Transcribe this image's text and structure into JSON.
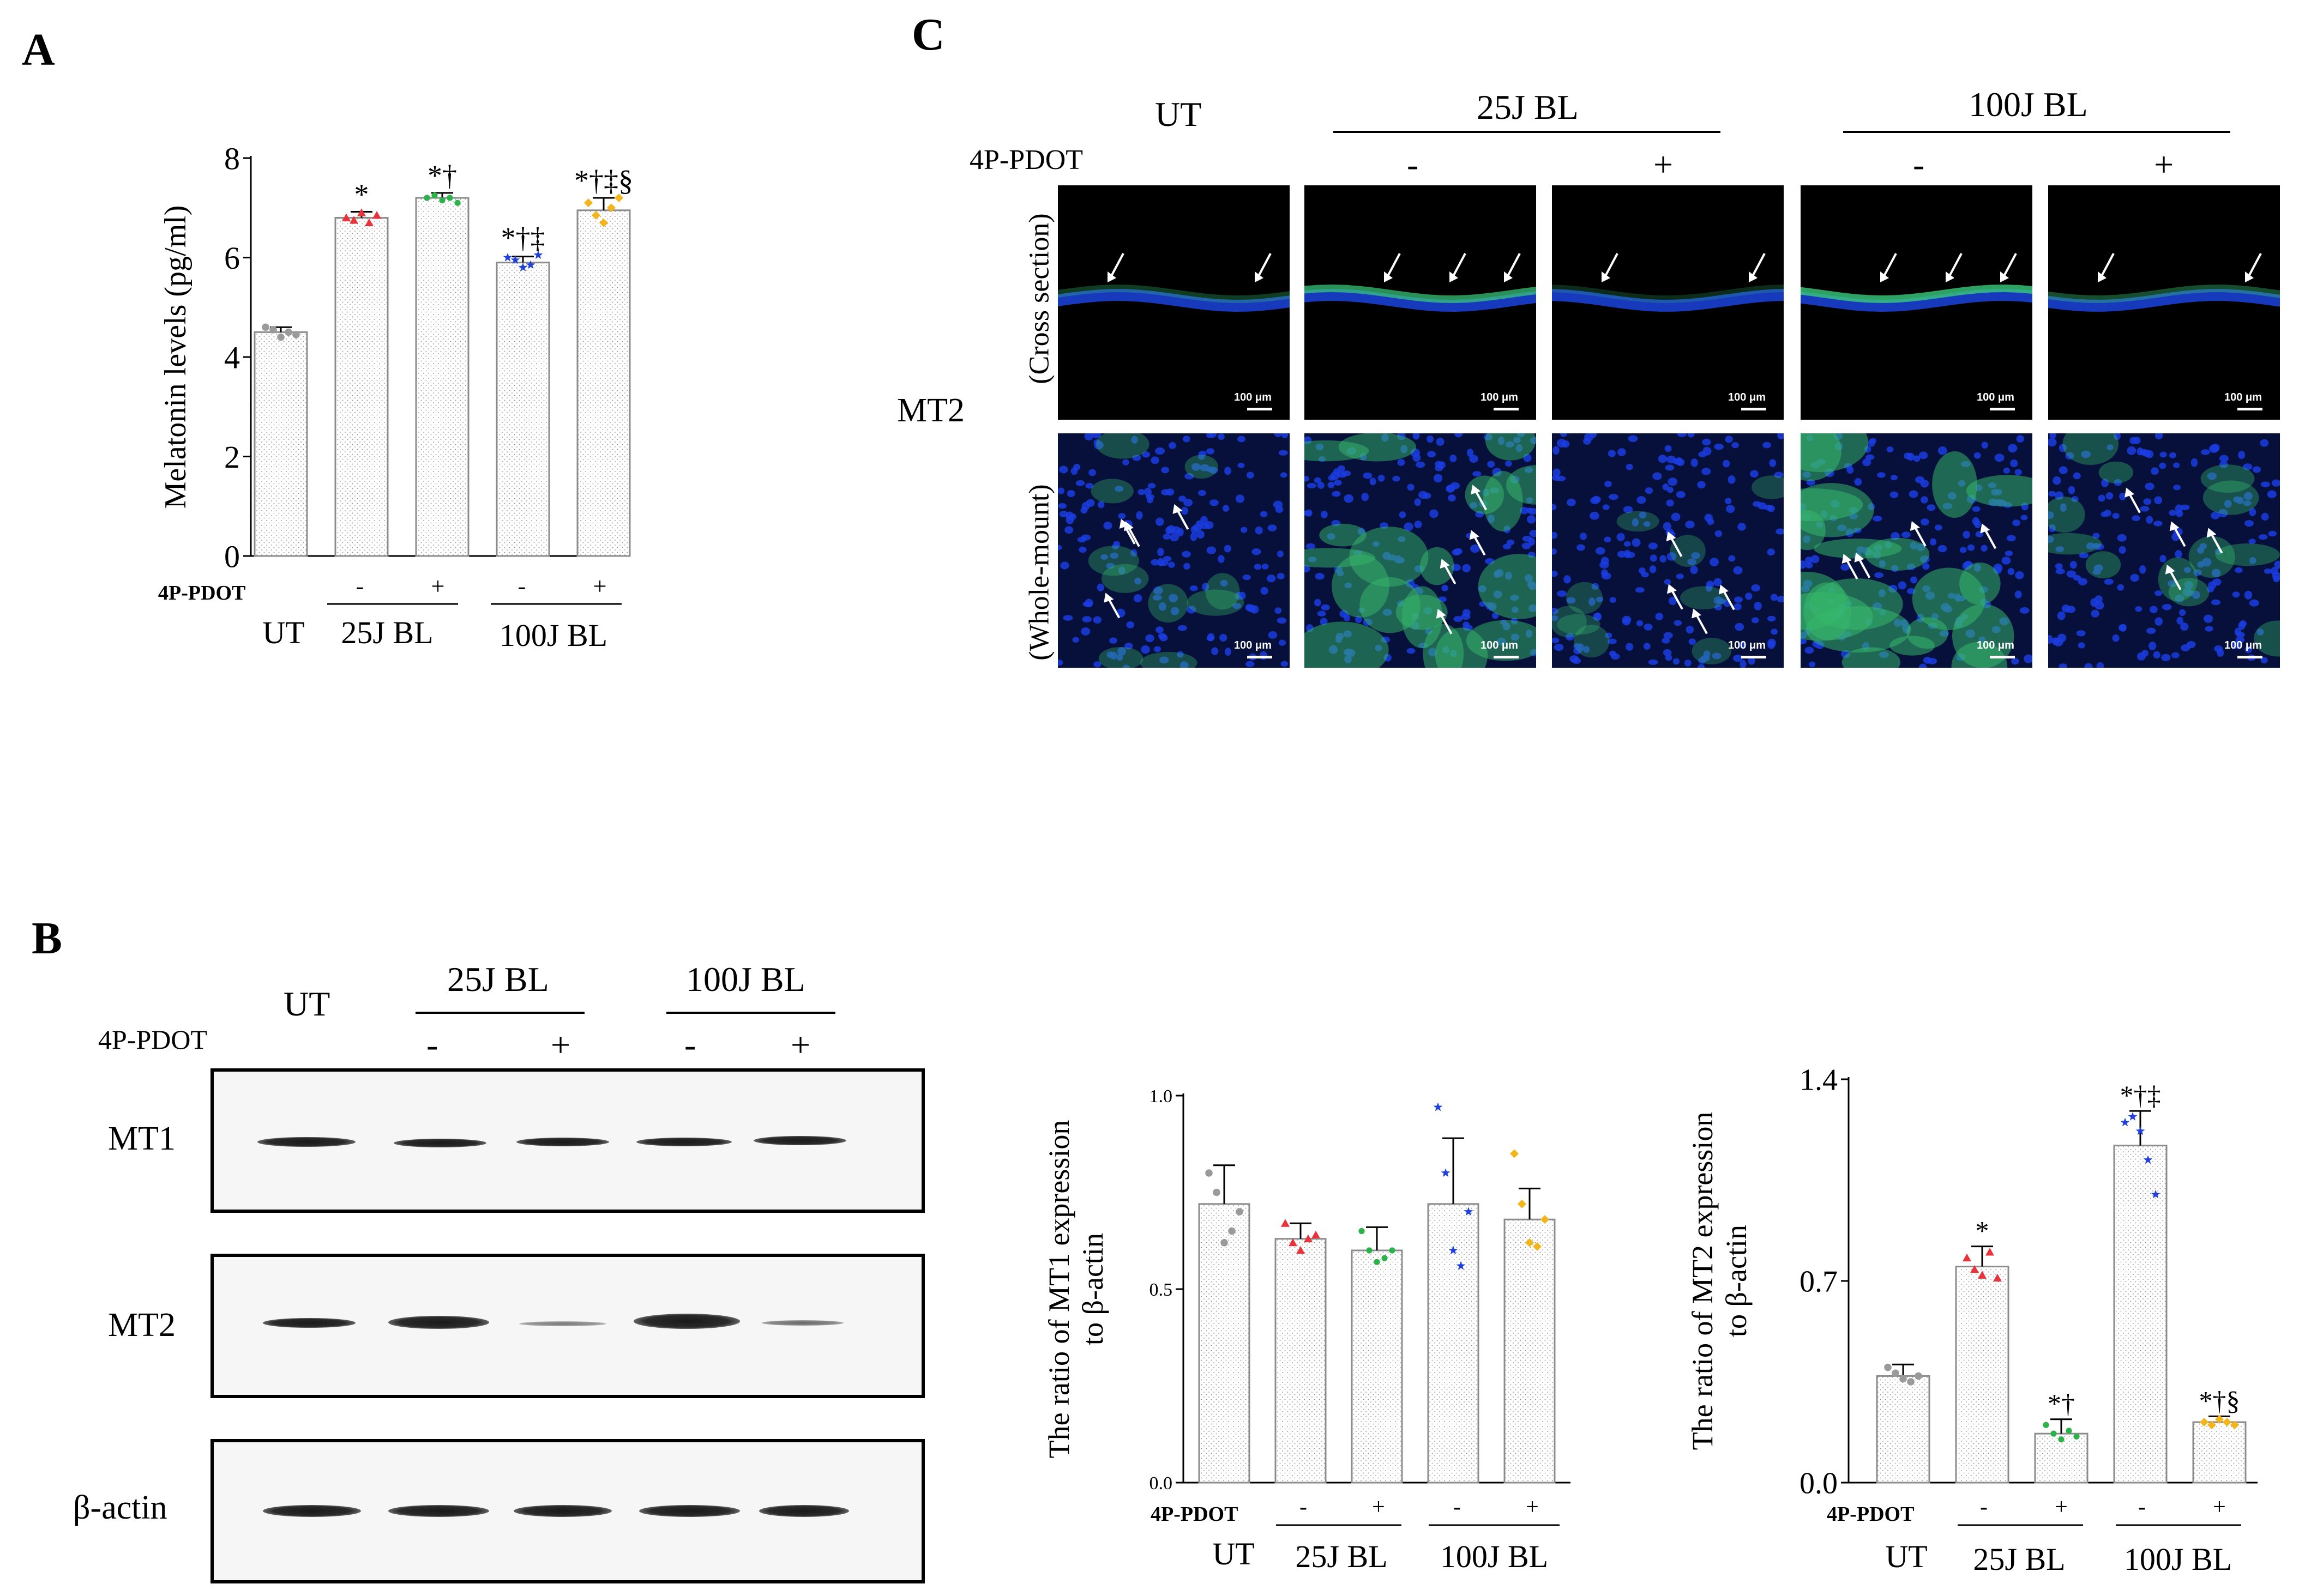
{
  "panels": {
    "A": "A",
    "B": "B",
    "C": "C"
  },
  "groups": {
    "ut": "UT",
    "bl25": "25J BL",
    "bl100": "100J BL",
    "inhibitor": "4P-PDOT",
    "minus": "-",
    "plus": "+"
  },
  "panel_b_blot": {
    "rows": [
      "MT1",
      "MT2",
      "β-actin"
    ]
  },
  "panel_c": {
    "row_group": "MT2",
    "row_labels": [
      "(Cross section)",
      "(Whole-mount)"
    ],
    "scale_label": "100 μm"
  },
  "chart_data": [
    {
      "id": "melatonin",
      "type": "bar",
      "ylabel": "Melatonin levels (pg/ml)",
      "ylim": [
        0,
        8
      ],
      "yticks": [
        "0",
        "2",
        "4",
        "6",
        "8"
      ],
      "categories": [
        "UT",
        "25J BL -",
        "25J BL +",
        "100J BL -",
        "100J BL +"
      ],
      "values": [
        4.5,
        6.8,
        7.2,
        5.9,
        6.95
      ],
      "errors": [
        0.1,
        0.12,
        0.1,
        0.12,
        0.25
      ],
      "points": [
        [
          4.6,
          4.55,
          4.4,
          4.5,
          4.45
        ],
        [
          6.8,
          6.75,
          6.9,
          6.7,
          6.85
        ],
        [
          7.2,
          7.25,
          7.15,
          7.2,
          7.1
        ],
        [
          6.0,
          5.95,
          5.8,
          5.85,
          6.05
        ],
        [
          7.1,
          6.85,
          6.7,
          7.0,
          7.2
        ]
      ],
      "annotations": [
        "",
        "*",
        "*†",
        "*†‡",
        "*†‡§"
      ]
    },
    {
      "id": "mt1_ratio",
      "type": "bar",
      "ylabel_lines": [
        "The ratio of MT1 expression",
        "to β-actin"
      ],
      "ylim": [
        0,
        1
      ],
      "yticks": [
        "0.0",
        "0.5",
        "1.0"
      ],
      "categories": [
        "UT",
        "25J BL -",
        "25J BL +",
        "100J BL -",
        "100J BL +"
      ],
      "values": [
        0.72,
        0.63,
        0.6,
        0.72,
        0.68
      ],
      "errors": [
        0.1,
        0.04,
        0.06,
        0.17,
        0.08
      ],
      "points": [
        [
          0.8,
          0.75,
          0.62,
          0.65,
          0.7
        ],
        [
          0.67,
          0.62,
          0.6,
          0.63,
          0.64
        ],
        [
          0.65,
          0.6,
          0.57,
          0.58,
          0.6
        ],
        [
          0.97,
          0.8,
          0.6,
          0.56,
          0.7
        ],
        [
          0.85,
          0.72,
          0.62,
          0.61,
          0.68
        ]
      ],
      "annotations": [
        "",
        "",
        "",
        "",
        ""
      ]
    },
    {
      "id": "mt2_ratio",
      "type": "bar",
      "ylabel_lines": [
        "The ratio of MT2 expression",
        "to β-actin"
      ],
      "ylim": [
        0,
        1.4
      ],
      "yticks": [
        "0.0",
        "0.7",
        "1.4"
      ],
      "categories": [
        "UT",
        "25J BL -",
        "25J BL +",
        "100J BL -",
        "100J BL +"
      ],
      "values": [
        0.37,
        0.75,
        0.17,
        1.17,
        0.21
      ],
      "errors": [
        0.04,
        0.07,
        0.05,
        0.12,
        0.02
      ],
      "points": [
        [
          0.4,
          0.38,
          0.36,
          0.35,
          0.37
        ],
        [
          0.78,
          0.74,
          0.72,
          0.8,
          0.71
        ],
        [
          0.2,
          0.17,
          0.15,
          0.18,
          0.16
        ],
        [
          1.25,
          1.27,
          1.22,
          1.12,
          1.0
        ],
        [
          0.21,
          0.2,
          0.22,
          0.21,
          0.2
        ]
      ],
      "annotations": [
        "",
        "*",
        "*†",
        "*†‡",
        "*†§"
      ]
    }
  ]
}
